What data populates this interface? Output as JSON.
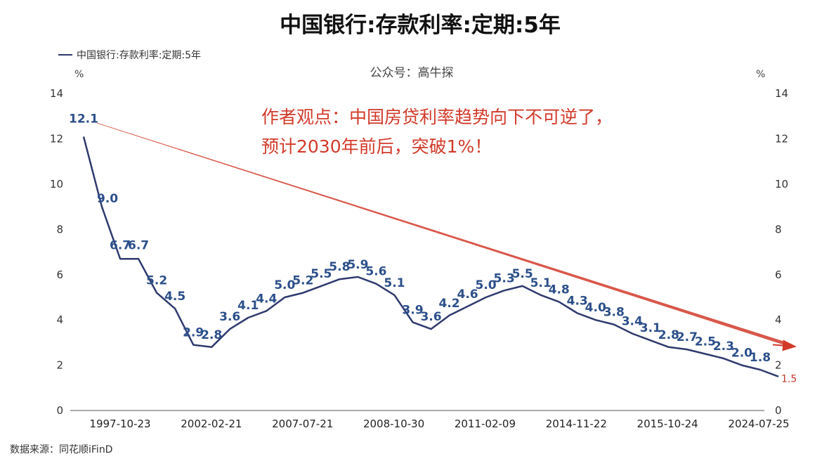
{
  "title": "中国银行:存款利率:定期:5年",
  "legend": "中国银行:存款利率:定期:5年",
  "watermark": "公众号：高牛探",
  "unit_left": "%",
  "unit_right": "%",
  "annotation_line1": "作者观点：中国房贷利率趋势向下不可逆了，",
  "annotation_line2": "预计2030年前后，突破1%！",
  "source": "数据来源：同花顺iFinD",
  "colors": {
    "series": "#2f3a6e",
    "labels": "#2c4f8a",
    "trend": "#d23a2a"
  },
  "chart_data": {
    "type": "line",
    "series": [
      {
        "name": "中国银行:存款利率:定期:5年",
        "values": [
          12.1,
          9.0,
          6.7,
          6.7,
          5.2,
          4.5,
          2.9,
          2.8,
          3.6,
          4.1,
          4.4,
          5.0,
          5.2,
          5.5,
          5.8,
          5.9,
          5.6,
          5.1,
          3.9,
          3.6,
          4.2,
          4.6,
          5.0,
          5.3,
          5.5,
          5.1,
          4.8,
          4.3,
          4.0,
          3.8,
          3.4,
          3.1,
          2.8,
          2.7,
          2.5,
          2.3,
          2.0,
          1.8,
          1.5
        ],
        "labels": [
          "12.1",
          "9.0",
          "6.7",
          "6.7",
          "5.2",
          "4.5",
          "2.9",
          "2.8",
          "3.6",
          "4.1",
          "4.4",
          "5.0",
          "5.2",
          "5.5",
          "5.8",
          "5.9",
          "5.6",
          "5.1",
          "3.9",
          "3.6",
          "4.2",
          "4.6",
          "5.0",
          "5.3",
          "5.5",
          "5.1",
          "4.8",
          "4.3",
          "4.0",
          "3.8",
          "3.4",
          "3.1",
          "2.8",
          "2.7",
          "2.5",
          "2.3",
          "2.0",
          "1.8",
          "1.5"
        ]
      }
    ],
    "x_tick_labels": [
      "1997-10-23",
      "2002-02-21",
      "2007-07-21",
      "2008-10-30",
      "2011-02-09",
      "2014-11-22",
      "2015-10-24",
      "2024-07-25"
    ],
    "y_ticks": [
      0,
      2,
      4,
      6,
      8,
      10,
      12,
      14
    ],
    "ylim": [
      0,
      14
    ],
    "y_axis_both_sides": true,
    "grid": false,
    "trend_arrow": {
      "from_value": 12.7,
      "to_value": 2.9
    },
    "legend_position": "top-left"
  }
}
